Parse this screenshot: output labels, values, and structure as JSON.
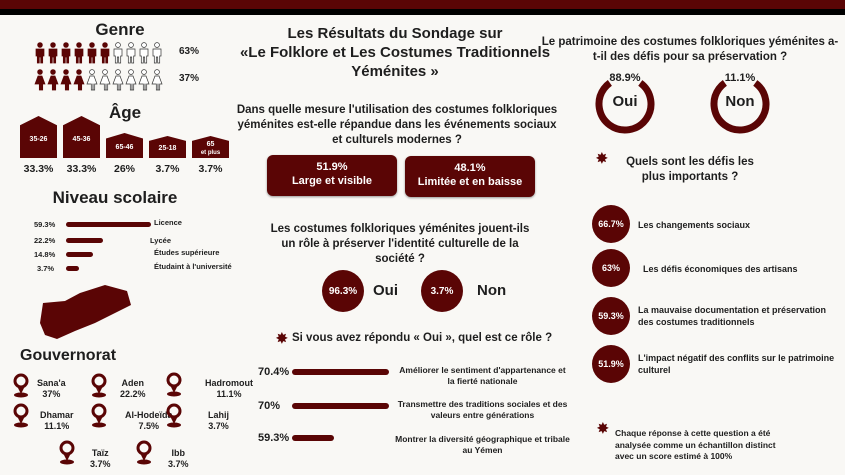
{
  "colors": {
    "accent": "#5a0505"
  },
  "title": {
    "line1": "Les Résultats du Sondage sur",
    "line2": "«Le Folklore et Les Costumes Traditionnels",
    "line3": "Yéménites  »"
  },
  "genre": {
    "heading": "Genre",
    "rows": [
      {
        "icon": "male-icon",
        "filled": 6,
        "total": 10,
        "pct": "63%"
      },
      {
        "icon": "female-icon",
        "filled": 4,
        "total": 10,
        "pct": "37%"
      }
    ]
  },
  "age": {
    "heading": "Âge",
    "groups": [
      {
        "label": "35-26",
        "pct": "33.3%",
        "value": 33.3
      },
      {
        "label": "45-36",
        "pct": "33.3%",
        "value": 33.3
      },
      {
        "label": "65-46",
        "pct": "26%",
        "value": 26
      },
      {
        "label": "25-18",
        "pct": "3.7%",
        "value": 3.7
      },
      {
        "label": "65",
        "sub": "et plus",
        "pct": "3.7%",
        "value": 3.7
      }
    ]
  },
  "education": {
    "heading": "Niveau scolaire",
    "items": [
      {
        "pct": "59.3%",
        "value": 59.3,
        "label": "Licence"
      },
      {
        "pct": "22.2%",
        "value": 22.2,
        "label": "Lycée"
      },
      {
        "pct": "14.8%",
        "value": 14.8,
        "label": "Études supérieure"
      },
      {
        "pct": "3.7%",
        "value": 3.7,
        "label": "Étudaint à l'université"
      }
    ]
  },
  "gouvernorat": {
    "heading": "Gouvernorat",
    "items": [
      {
        "name": "Sana'a",
        "pct": "37%"
      },
      {
        "name": "Aden",
        "pct": "22.2%"
      },
      {
        "name": "Hadromout",
        "pct": "11.1%"
      },
      {
        "name": "Dhamar",
        "pct": "11.1%"
      },
      {
        "name": "Al-Hodeïda",
        "pct": "7.5%"
      },
      {
        "name": "Lahij",
        "pct": "3.7%"
      },
      {
        "name": "Taïz",
        "pct": "3.7%"
      },
      {
        "name": "Ibb",
        "pct": "3.7%"
      }
    ]
  },
  "q1": {
    "question": "Dans quelle mesure l'utilisation des costumes folkloriques yéménites est-elle répandue dans les événements sociaux et culturels modernes ?",
    "answers": [
      {
        "pct": "51.9%",
        "label": "Large et visible"
      },
      {
        "pct": "48.1%",
        "label": "Limitée et en baisse"
      }
    ]
  },
  "q2": {
    "question": "Les costumes folkloriques yéménites jouent-ils un rôle à préserver l'identité culturelle de la société ?",
    "answers": [
      {
        "pct": "96.3%",
        "label": "Oui"
      },
      {
        "pct": "3.7%",
        "label": "Non"
      }
    ]
  },
  "q3": {
    "question": "Si vous avez répondu « Oui », quel est ce rôle ?",
    "items": [
      {
        "pct": "70.4%",
        "value": 70.4,
        "label": "Améliorer le sentiment d'appartenance et la fierté nationale"
      },
      {
        "pct": "70%",
        "value": 70,
        "label": "Transmettre des traditions sociales et des valeurs entre générations"
      },
      {
        "pct": "59.3%",
        "value": 59.3,
        "label": "Montrer la diversité géographique et tribale au Yémen"
      }
    ]
  },
  "q4": {
    "question": "Le patrimoine des costumes folkloriques yéménites a-t-il des défis pour sa préservation ?",
    "answers": [
      {
        "pct": "88.9%",
        "label": "Oui"
      },
      {
        "pct": "11.1%",
        "label": "Non"
      }
    ]
  },
  "q5": {
    "question": "Quels sont les défis les plus importants ?",
    "items": [
      {
        "pct": "66.7%",
        "label": "Les changements sociaux"
      },
      {
        "pct": "63%",
        "label": "Les défis économiques des artisans"
      },
      {
        "pct": "59.3%",
        "label": "La mauvaise documentation et préservation des costumes traditionnels"
      },
      {
        "pct": "51.9%",
        "label": "L'impact négatif des conflits sur le patrimoine culturel"
      }
    ]
  },
  "note": "Chaque réponse à cette question a été analysée comme un échantillon distinct avec un score estimé à 100%"
}
